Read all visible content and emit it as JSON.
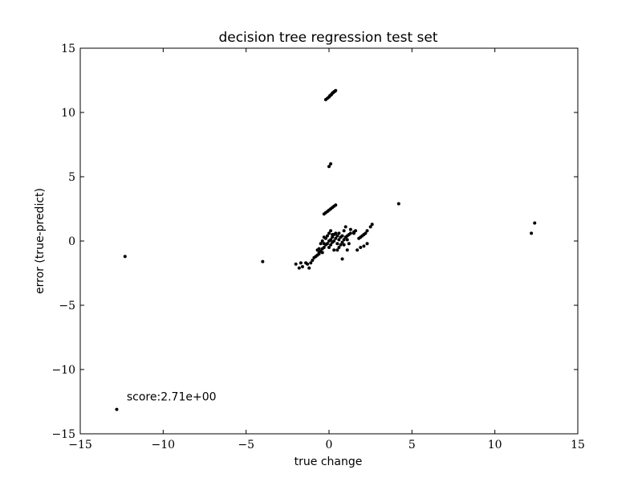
{
  "chart_data": {
    "type": "scatter",
    "title": "decision tree regression test set",
    "xlabel": "true change",
    "ylabel": "error (true-predict)",
    "xlim": [
      -15,
      15
    ],
    "ylim": [
      -15,
      15
    ],
    "xticks": [
      -15,
      -10,
      -5,
      0,
      5,
      10,
      15
    ],
    "yticks": [
      -15,
      -10,
      -5,
      0,
      5,
      10,
      15
    ],
    "xtick_labels": [
      "−15",
      "−10",
      "−5",
      "0",
      "5",
      "10",
      "15"
    ],
    "ytick_labels": [
      "−15",
      "−10",
      "−5",
      "0",
      "5",
      "10",
      "15"
    ],
    "grid": false,
    "marker_color": "#000000",
    "annotation": {
      "text": "score:2.71e+00",
      "x": -12.2,
      "y": -12.1
    },
    "points": [
      [
        -12.8,
        -13.1
      ],
      [
        -12.3,
        -1.2
      ],
      [
        -4.0,
        -1.6
      ],
      [
        4.2,
        2.9
      ],
      [
        12.2,
        0.6
      ],
      [
        12.4,
        1.4
      ],
      [
        -0.2,
        11.0
      ],
      [
        -0.1,
        11.1
      ],
      [
        0.0,
        11.2
      ],
      [
        0.05,
        11.3
      ],
      [
        0.1,
        11.35
      ],
      [
        0.15,
        11.4
      ],
      [
        0.2,
        11.5
      ],
      [
        0.25,
        11.55
      ],
      [
        0.3,
        11.6
      ],
      [
        0.35,
        11.65
      ],
      [
        0.4,
        11.7
      ],
      [
        0.0,
        5.8
      ],
      [
        0.1,
        6.0
      ],
      [
        -0.3,
        2.1
      ],
      [
        -0.2,
        2.2
      ],
      [
        -0.1,
        2.3
      ],
      [
        0.0,
        2.4
      ],
      [
        0.1,
        2.5
      ],
      [
        0.2,
        2.6
      ],
      [
        0.3,
        2.7
      ],
      [
        0.4,
        2.8
      ],
      [
        -2.0,
        -1.8
      ],
      [
        -1.8,
        -2.1
      ],
      [
        -1.6,
        -2.0
      ],
      [
        -1.7,
        -1.7
      ],
      [
        -1.4,
        -1.7
      ],
      [
        -1.3,
        -1.8
      ],
      [
        -1.2,
        -2.1
      ],
      [
        -1.1,
        -1.7
      ],
      [
        -1.0,
        -1.5
      ],
      [
        -0.9,
        -1.3
      ],
      [
        -0.8,
        -1.2
      ],
      [
        -0.7,
        -1.1
      ],
      [
        -0.6,
        -0.9
      ],
      [
        -0.5,
        -0.8
      ],
      [
        -0.4,
        -0.6
      ],
      [
        -0.3,
        -0.5
      ],
      [
        -0.2,
        -0.3
      ],
      [
        -0.1,
        -0.2
      ],
      [
        0.0,
        0.0
      ],
      [
        0.1,
        0.1
      ],
      [
        0.2,
        0.3
      ],
      [
        0.3,
        0.5
      ],
      [
        0.4,
        0.6
      ],
      [
        -0.6,
        -0.6
      ],
      [
        -0.4,
        -0.9
      ],
      [
        -0.3,
        -0.2
      ],
      [
        -0.2,
        0.2
      ],
      [
        -0.1,
        0.4
      ],
      [
        0.0,
        0.6
      ],
      [
        0.1,
        0.8
      ],
      [
        0.0,
        -0.5
      ],
      [
        0.1,
        -0.3
      ],
      [
        0.2,
        -0.1
      ],
      [
        0.3,
        0.0
      ],
      [
        0.4,
        0.2
      ],
      [
        0.5,
        0.4
      ],
      [
        -0.5,
        -0.2
      ],
      [
        -0.4,
        0.0
      ],
      [
        -0.3,
        0.3
      ],
      [
        0.2,
        0.5
      ],
      [
        0.5,
        -0.2
      ],
      [
        0.6,
        0.1
      ],
      [
        0.7,
        0.3
      ],
      [
        0.8,
        0.4
      ],
      [
        -0.7,
        -0.7
      ],
      [
        -0.6,
        -1.0
      ],
      [
        0.3,
        -0.7
      ],
      [
        0.6,
        0.6
      ],
      [
        0.9,
        0.8
      ],
      [
        0.5,
        -0.7
      ],
      [
        0.6,
        -0.5
      ],
      [
        0.7,
        -0.3
      ],
      [
        0.8,
        -0.1
      ],
      [
        0.9,
        0.1
      ],
      [
        1.0,
        0.3
      ],
      [
        1.1,
        0.4
      ],
      [
        1.2,
        0.5
      ],
      [
        1.3,
        0.6
      ],
      [
        0.9,
        -0.3
      ],
      [
        1.1,
        0.1
      ],
      [
        1.2,
        -0.2
      ],
      [
        0.8,
        -1.4
      ],
      [
        1.0,
        1.1
      ],
      [
        1.3,
        0.9
      ],
      [
        1.5,
        0.7
      ],
      [
        1.6,
        0.8
      ],
      [
        1.5,
        0.6
      ],
      [
        1.7,
        -0.7
      ],
      [
        1.9,
        -0.5
      ],
      [
        2.1,
        -0.4
      ],
      [
        2.3,
        -0.2
      ],
      [
        1.8,
        0.2
      ],
      [
        1.9,
        0.3
      ],
      [
        2.0,
        0.4
      ],
      [
        2.1,
        0.5
      ],
      [
        2.2,
        0.6
      ],
      [
        2.3,
        0.8
      ],
      [
        2.5,
        1.1
      ],
      [
        2.6,
        1.3
      ],
      [
        1.1,
        -0.7
      ]
    ]
  }
}
